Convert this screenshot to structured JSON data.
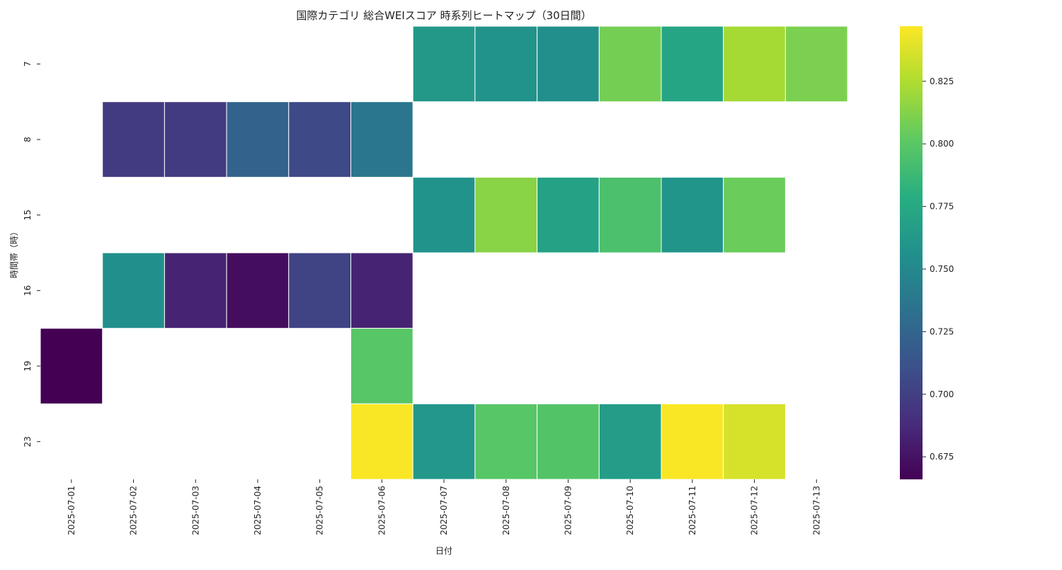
{
  "chart_data": {
    "type": "heatmap",
    "title": "国際カテゴリ 総合WEIスコア 時系列ヒートマップ（30日間）",
    "xlabel": "日付",
    "ylabel": "時間帯（時）",
    "x_categories": [
      "2025-07-01",
      "2025-07-02",
      "2025-07-03",
      "2025-07-04",
      "2025-07-05",
      "2025-07-06",
      "2025-07-07",
      "2025-07-08",
      "2025-07-09",
      "2025-07-10",
      "2025-07-11",
      "2025-07-12",
      "2025-07-13"
    ],
    "y_categories": [
      "7",
      "8",
      "15",
      "16",
      "19",
      "23"
    ],
    "values": [
      [
        null,
        null,
        null,
        null,
        null,
        null,
        0.762,
        0.758,
        0.755,
        0.808,
        0.772,
        0.822,
        0.81
      ],
      [
        null,
        0.697,
        0.697,
        0.723,
        0.706,
        0.737,
        null,
        null,
        null,
        null,
        null,
        null,
        null
      ],
      [
        null,
        null,
        null,
        null,
        null,
        null,
        0.758,
        0.814,
        0.769,
        0.794,
        0.76,
        0.805,
        null
      ],
      [
        null,
        0.756,
        0.684,
        0.672,
        0.702,
        0.684,
        null,
        null,
        null,
        null,
        null,
        null,
        null
      ],
      [
        0.666,
        null,
        null,
        null,
        null,
        0.799,
        null,
        null,
        null,
        null,
        null,
        null,
        null
      ],
      [
        null,
        null,
        null,
        null,
        null,
        0.846,
        0.761,
        0.799,
        0.797,
        0.765,
        0.846,
        0.836,
        null
      ]
    ],
    "colormap": "viridis",
    "vmin": 0.666,
    "vmax": 0.847,
    "colorbar_ticks": [
      0.675,
      0.7,
      0.725,
      0.75,
      0.775,
      0.8,
      0.825
    ],
    "colorbar_tick_labels": [
      "0.675",
      "0.700",
      "0.725",
      "0.750",
      "0.775",
      "0.800",
      "0.825"
    ],
    "grid": false,
    "cell_border_color": "#ffffff"
  }
}
